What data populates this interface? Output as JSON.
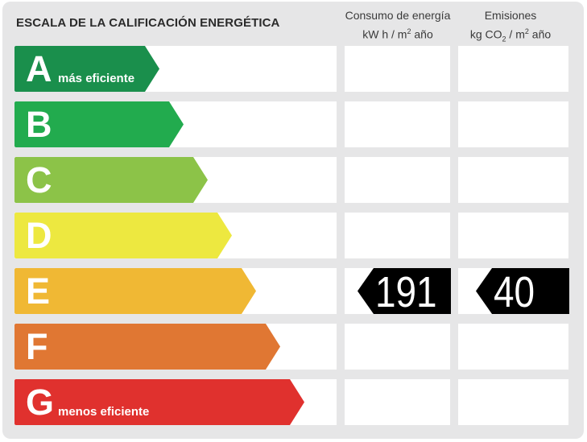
{
  "title": "ESCALA DE LA CALIFICACIÓN ENERGÉTICA",
  "columns": {
    "consumo": {
      "line1": "Consumo de energía",
      "line2_pre": "kW h  / m",
      "line2_sup": "2",
      "line2_post": " año"
    },
    "emisiones": {
      "line1": "Emisiones",
      "line2_pre": "kg CO",
      "line2_sub": "2",
      "line2_mid": "  / m",
      "line2_sup": "2",
      "line2_post": " año"
    }
  },
  "chart_data": {
    "type": "table",
    "title": "ESCALA DE LA CALIFICACIÓN ENERGÉTICA",
    "classes": [
      {
        "letter": "A",
        "label": "más eficiente",
        "color": "#1a8f4c"
      },
      {
        "letter": "B",
        "label": "",
        "color": "#22ab4e"
      },
      {
        "letter": "C",
        "label": "",
        "color": "#8cc348"
      },
      {
        "letter": "D",
        "label": "",
        "color": "#ede840"
      },
      {
        "letter": "E",
        "label": "",
        "color": "#f0b834"
      },
      {
        "letter": "F",
        "label": "",
        "color": "#e07733"
      },
      {
        "letter": "G",
        "label": "menos eficiente",
        "color": "#e0312e"
      }
    ],
    "rating": {
      "class": "E",
      "consumo_kwh_m2_year": "191",
      "emisiones_kgco2_m2_year": "40"
    },
    "marker_color": "#000000"
  }
}
